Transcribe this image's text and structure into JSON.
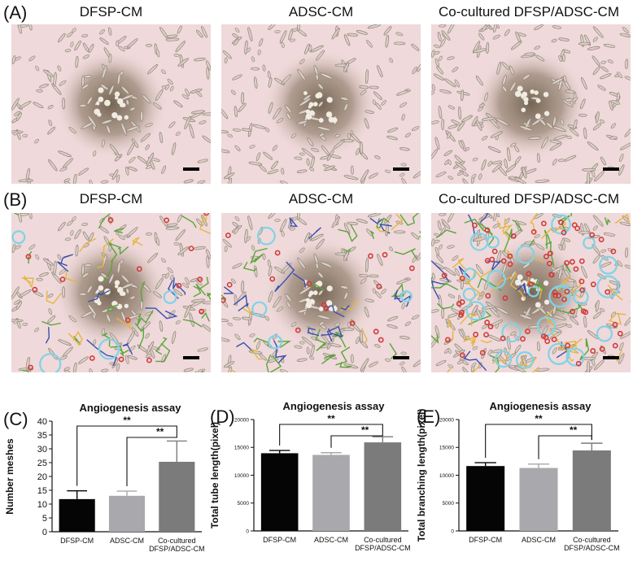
{
  "figure": {
    "panels": {
      "A": {
        "letter": "(A)",
        "columns": [
          {
            "title": "DFSP-CM"
          },
          {
            "title": "ADSC-CM"
          },
          {
            "title": "Co-cultured DFSP/ADSC-CM"
          }
        ]
      },
      "B": {
        "letter": "(B)",
        "columns": [
          {
            "title": "DFSP-CM"
          },
          {
            "title": "ADSC-CM"
          },
          {
            "title": "Co-cultured DFSP/ADSC-CM"
          }
        ]
      }
    },
    "colors": {
      "background_tissue": "#efd9da",
      "segment_green": "#5aa63a",
      "segment_yellow": "#e5b640",
      "segment_blue": "#3a4fb0",
      "node_red": "#d23a3a",
      "mesh_cyan": "#7fd3e6"
    }
  },
  "chart_data": [
    {
      "panel": "(C)",
      "type": "bar",
      "title": "Angiogenesis assay",
      "xlabel": "",
      "ylabel": "Number meshes",
      "categories": [
        "DFSP-CM",
        "ADSC-CM",
        "Co-cultured\nDFSP/ADSC-CM"
      ],
      "values": [
        11.8,
        13.0,
        25.3
      ],
      "errors": [
        3.0,
        1.7,
        7.5
      ],
      "colors": [
        "#050505",
        "#a8a8ad",
        "#7b7b7b"
      ],
      "ylim": [
        0,
        40
      ],
      "yticks": [
        0,
        5,
        10,
        15,
        20,
        25,
        30,
        35,
        40
      ],
      "significance": [
        {
          "from": 0,
          "to": 2,
          "label": "**"
        },
        {
          "from": 1,
          "to": 2,
          "label": "**"
        }
      ]
    },
    {
      "panel": "(D)",
      "type": "bar",
      "title": "Angiogenesis assay",
      "xlabel": "",
      "ylabel": "Total tube length(pixel)",
      "categories": [
        "DFSP-CM",
        "ADSC-CM",
        "Co-cultured\nDFSP/ADSC-CM"
      ],
      "values": [
        13950,
        13650,
        15900
      ],
      "errors": [
        500,
        400,
        1000
      ],
      "colors": [
        "#050505",
        "#a8a8ad",
        "#7b7b7b"
      ],
      "ylim": [
        0,
        20000
      ],
      "yticks": [
        0,
        5000,
        10000,
        15000,
        20000
      ],
      "significance": [
        {
          "from": 0,
          "to": 2,
          "label": "**"
        },
        {
          "from": 1,
          "to": 2,
          "label": "**"
        }
      ]
    },
    {
      "panel": "(E)",
      "type": "bar",
      "title": "Angiogenesis assay",
      "xlabel": "",
      "ylabel": "Total branching length(pixel)",
      "categories": [
        "DFSP-CM",
        "ADSC-CM",
        "Co-cultured\nDFSP/ADSC-CM"
      ],
      "values": [
        11650,
        11300,
        14450
      ],
      "errors": [
        600,
        700,
        1300
      ],
      "colors": [
        "#050505",
        "#a8a8ad",
        "#7b7b7b"
      ],
      "ylim": [
        0,
        20000
      ],
      "yticks": [
        0,
        5000,
        10000,
        15000,
        20000
      ],
      "significance": [
        {
          "from": 0,
          "to": 2,
          "label": "**"
        },
        {
          "from": 1,
          "to": 2,
          "label": "**"
        }
      ]
    }
  ]
}
